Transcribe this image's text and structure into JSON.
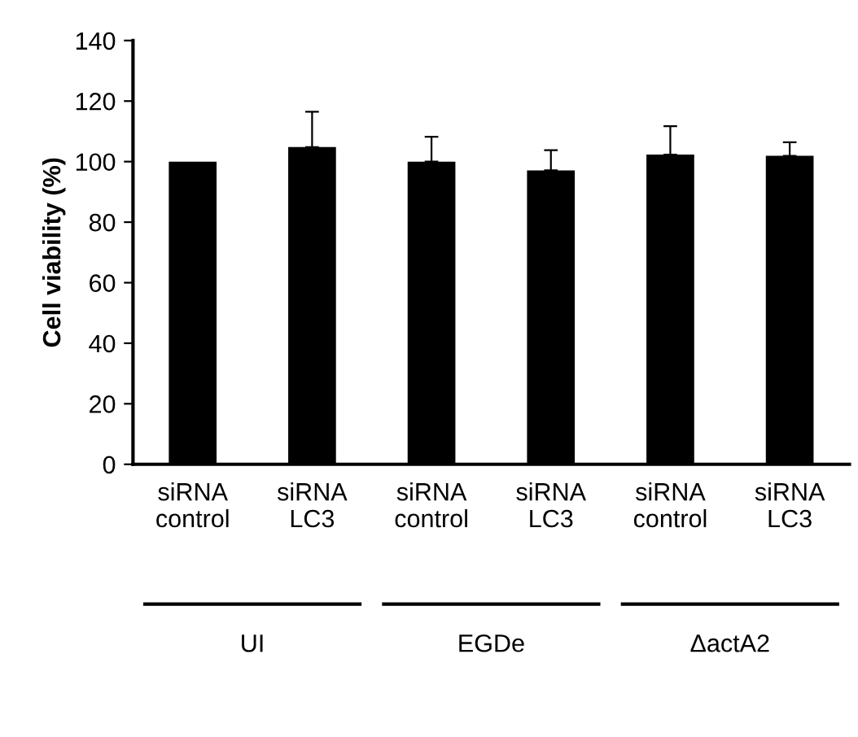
{
  "chart_data": {
    "type": "bar",
    "ylabel": "Cell viability (%)",
    "categories": [
      "siRNA\ncontrol",
      "siRNA\nLC3",
      "siRNA\ncontrol",
      "siRNA\nLC3",
      "siRNA\ncontrol",
      "siRNA\nLC3"
    ],
    "values": [
      100,
      104.8,
      100,
      97.1,
      102.3,
      101.9
    ],
    "errors": [
      null,
      11.7,
      8.2,
      6.7,
      9.4,
      4.5
    ],
    "color": "#000000",
    "annotations": [
      "UI",
      "EGDe",
      "ΔactA2"
    ],
    "ylim": [
      0,
      140
    ],
    "yticks": [
      0,
      20,
      40,
      60,
      80,
      100,
      120,
      140
    ],
    "grid": false
  }
}
